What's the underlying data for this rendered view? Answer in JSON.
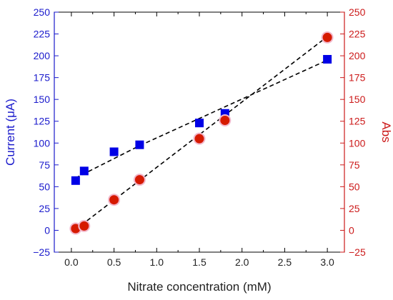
{
  "chart_data": {
    "type": "scatter",
    "xlabel": "Nitrate concentration (mM)",
    "ylabel_left": "Current (μA)",
    "ylabel_right": "Abs",
    "xlim": [
      -0.2,
      3.2
    ],
    "ylim": [
      -25,
      250
    ],
    "x_ticks": [
      "0.0",
      "0.5",
      "1.0",
      "1.5",
      "2.0",
      "2.5",
      "3.0"
    ],
    "y_ticks": [
      "−25",
      "0",
      "25",
      "50",
      "75",
      "100",
      "125",
      "150",
      "175",
      "200",
      "225",
      "250"
    ],
    "grid": false,
    "legend": "none",
    "colors": {
      "left_axis": "#1a1acc",
      "right_axis": "#cc1a1a",
      "current_marker": "#0000e6",
      "abs_marker": "#d61a00",
      "abs_marker_halo": "#f2b8cc",
      "fit_line": "#000000"
    },
    "series": [
      {
        "axis": "left",
        "marker": "square",
        "x": [
          0.05,
          0.15,
          0.5,
          0.8,
          1.5,
          1.8,
          3.0
        ],
        "y": [
          57,
          68,
          90,
          98,
          123,
          134,
          196
        ],
        "fit_segments": [
          [
            [
              0.05,
              60
            ],
            [
              0.8,
              97
            ]
          ],
          [
            [
              0.8,
              97
            ],
            [
              3.0,
              195
            ]
          ]
        ]
      },
      {
        "axis": "right",
        "marker": "circle",
        "x": [
          0.05,
          0.15,
          0.5,
          0.8,
          1.5,
          1.8,
          3.0
        ],
        "y": [
          2,
          5,
          35,
          58,
          105,
          126,
          221
        ],
        "fit_segments": [
          [
            [
              0.05,
              1
            ],
            [
              3.0,
              222
            ]
          ]
        ]
      }
    ]
  }
}
